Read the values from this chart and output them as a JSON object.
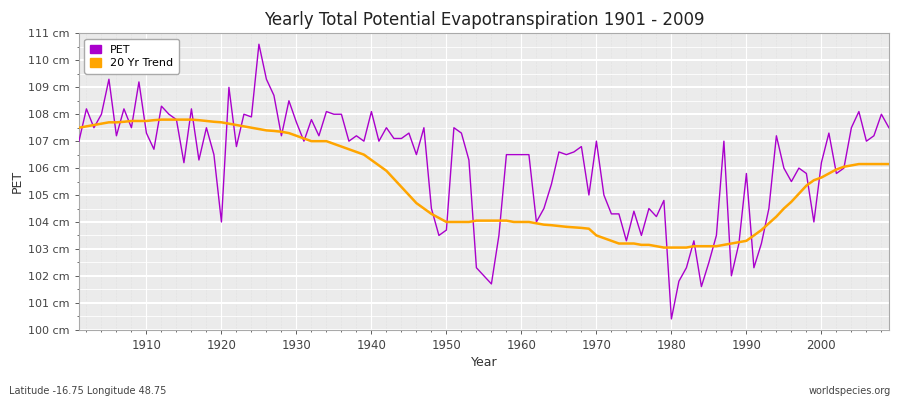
{
  "title": "Yearly Total Potential Evapotranspiration 1901 - 2009",
  "xlabel": "Year",
  "ylabel": "PET",
  "footnote_left": "Latitude -16.75 Longitude 48.75",
  "footnote_right": "worldspecies.org",
  "pet_color": "#AA00CC",
  "trend_color": "#FFA500",
  "bg_color": "#FFFFFF",
  "plot_bg_color": "#EBEBEB",
  "ylim_min": 100,
  "ylim_max": 111,
  "xlim_min": 1901,
  "xlim_max": 2009,
  "years": [
    1901,
    1902,
    1903,
    1904,
    1905,
    1906,
    1907,
    1908,
    1909,
    1910,
    1911,
    1912,
    1913,
    1914,
    1915,
    1916,
    1917,
    1918,
    1919,
    1920,
    1921,
    1922,
    1923,
    1924,
    1925,
    1926,
    1927,
    1928,
    1929,
    1930,
    1931,
    1932,
    1933,
    1934,
    1935,
    1936,
    1937,
    1938,
    1939,
    1940,
    1941,
    1942,
    1943,
    1944,
    1945,
    1946,
    1947,
    1948,
    1949,
    1950,
    1951,
    1952,
    1953,
    1954,
    1955,
    1956,
    1957,
    1958,
    1959,
    1960,
    1961,
    1962,
    1963,
    1964,
    1965,
    1966,
    1967,
    1968,
    1969,
    1970,
    1971,
    1972,
    1973,
    1974,
    1975,
    1976,
    1977,
    1978,
    1979,
    1980,
    1981,
    1982,
    1983,
    1984,
    1985,
    1986,
    1987,
    1988,
    1989,
    1990,
    1991,
    1992,
    1993,
    1994,
    1995,
    1996,
    1997,
    1998,
    1999,
    2000,
    2001,
    2002,
    2003,
    2004,
    2005,
    2006,
    2007,
    2008,
    2009
  ],
  "pet_values": [
    107.0,
    108.2,
    107.5,
    108.0,
    109.3,
    107.2,
    108.2,
    107.5,
    109.2,
    107.3,
    106.7,
    108.3,
    108.0,
    107.8,
    106.2,
    108.2,
    106.3,
    107.5,
    106.5,
    104.0,
    109.0,
    106.8,
    108.0,
    107.9,
    110.6,
    109.3,
    108.7,
    107.2,
    108.5,
    107.7,
    107.0,
    107.8,
    107.2,
    108.1,
    108.0,
    108.0,
    107.0,
    107.2,
    107.0,
    108.1,
    107.0,
    107.5,
    107.1,
    107.1,
    107.3,
    106.5,
    107.5,
    104.5,
    103.5,
    103.7,
    107.5,
    107.3,
    106.3,
    102.3,
    102.0,
    101.7,
    103.5,
    106.5,
    106.5,
    106.5,
    106.5,
    104.0,
    104.5,
    105.4,
    106.6,
    106.5,
    106.6,
    106.8,
    105.0,
    107.0,
    105.0,
    104.3,
    104.3,
    103.3,
    104.4,
    103.5,
    104.5,
    104.2,
    104.8,
    100.4,
    101.8,
    102.3,
    103.3,
    101.6,
    102.5,
    103.5,
    107.0,
    102.0,
    103.2,
    105.8,
    102.3,
    103.2,
    104.5,
    107.2,
    106.0,
    105.5,
    106.0,
    105.8,
    104.0,
    106.2,
    107.3,
    105.8,
    106.0,
    107.5,
    108.1,
    107.0,
    107.2,
    108.0,
    107.5
  ],
  "trend_values": [
    107.5,
    107.55,
    107.6,
    107.65,
    107.7,
    107.7,
    107.72,
    107.75,
    107.75,
    107.75,
    107.78,
    107.8,
    107.8,
    107.8,
    107.8,
    107.8,
    107.78,
    107.75,
    107.72,
    107.7,
    107.65,
    107.6,
    107.55,
    107.5,
    107.45,
    107.4,
    107.38,
    107.35,
    107.3,
    107.2,
    107.1,
    107.0,
    107.0,
    107.0,
    106.9,
    106.8,
    106.7,
    106.6,
    106.5,
    106.3,
    106.1,
    105.9,
    105.6,
    105.3,
    105.0,
    104.7,
    104.5,
    104.3,
    104.15,
    104.0,
    104.0,
    104.0,
    104.0,
    104.05,
    104.05,
    104.05,
    104.05,
    104.05,
    104.0,
    104.0,
    104.0,
    103.95,
    103.9,
    103.88,
    103.85,
    103.82,
    103.8,
    103.78,
    103.75,
    103.5,
    103.4,
    103.3,
    103.2,
    103.2,
    103.2,
    103.15,
    103.15,
    103.1,
    103.05,
    103.05,
    103.05,
    103.05,
    103.1,
    103.1,
    103.1,
    103.1,
    103.15,
    103.2,
    103.25,
    103.3,
    103.5,
    103.7,
    103.95,
    104.2,
    104.5,
    104.75,
    105.05,
    105.35,
    105.55,
    105.65,
    105.8,
    105.95,
    106.05,
    106.1,
    106.15,
    106.15,
    106.15,
    106.15,
    106.15
  ],
  "xtick_vals": [
    1910,
    1920,
    1930,
    1940,
    1950,
    1960,
    1970,
    1980,
    1990,
    2000
  ],
  "ytick_vals": [
    100,
    101,
    102,
    103,
    104,
    105,
    106,
    107,
    108,
    109,
    110,
    111
  ]
}
